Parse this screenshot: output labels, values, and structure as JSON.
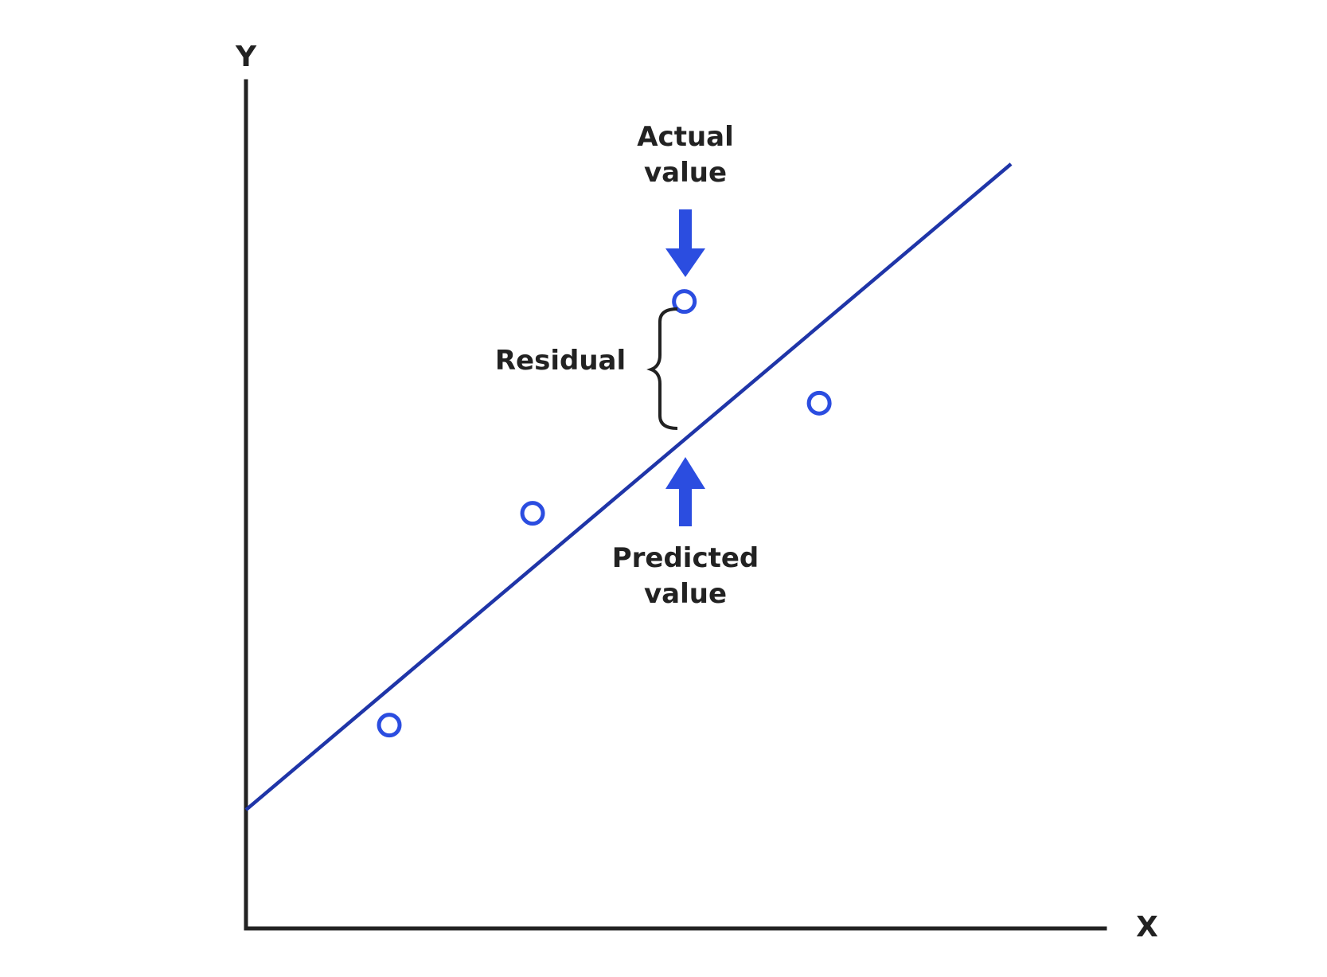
{
  "axes": {
    "x_label": "X",
    "y_label": "Y"
  },
  "annotations": {
    "actual": [
      "Actual",
      "value"
    ],
    "predicted": [
      "Predicted",
      "value"
    ],
    "residual": "Residual"
  },
  "colors": {
    "axis": "#222222",
    "regression_line": "#1f35a8",
    "points": "#2b4de0",
    "arrows": "#2b4de0",
    "text": "#222222",
    "background": "#ffffff"
  },
  "points": [
    {
      "x": 0.17,
      "y": 0.24
    },
    {
      "x": 0.34,
      "y": 0.49
    },
    {
      "x": 0.52,
      "y": 0.74
    },
    {
      "x": 0.68,
      "y": 0.62
    }
  ],
  "regression_line": {
    "intercept": 0.14,
    "slope": 0.84
  },
  "highlighted_point_index": 2
}
